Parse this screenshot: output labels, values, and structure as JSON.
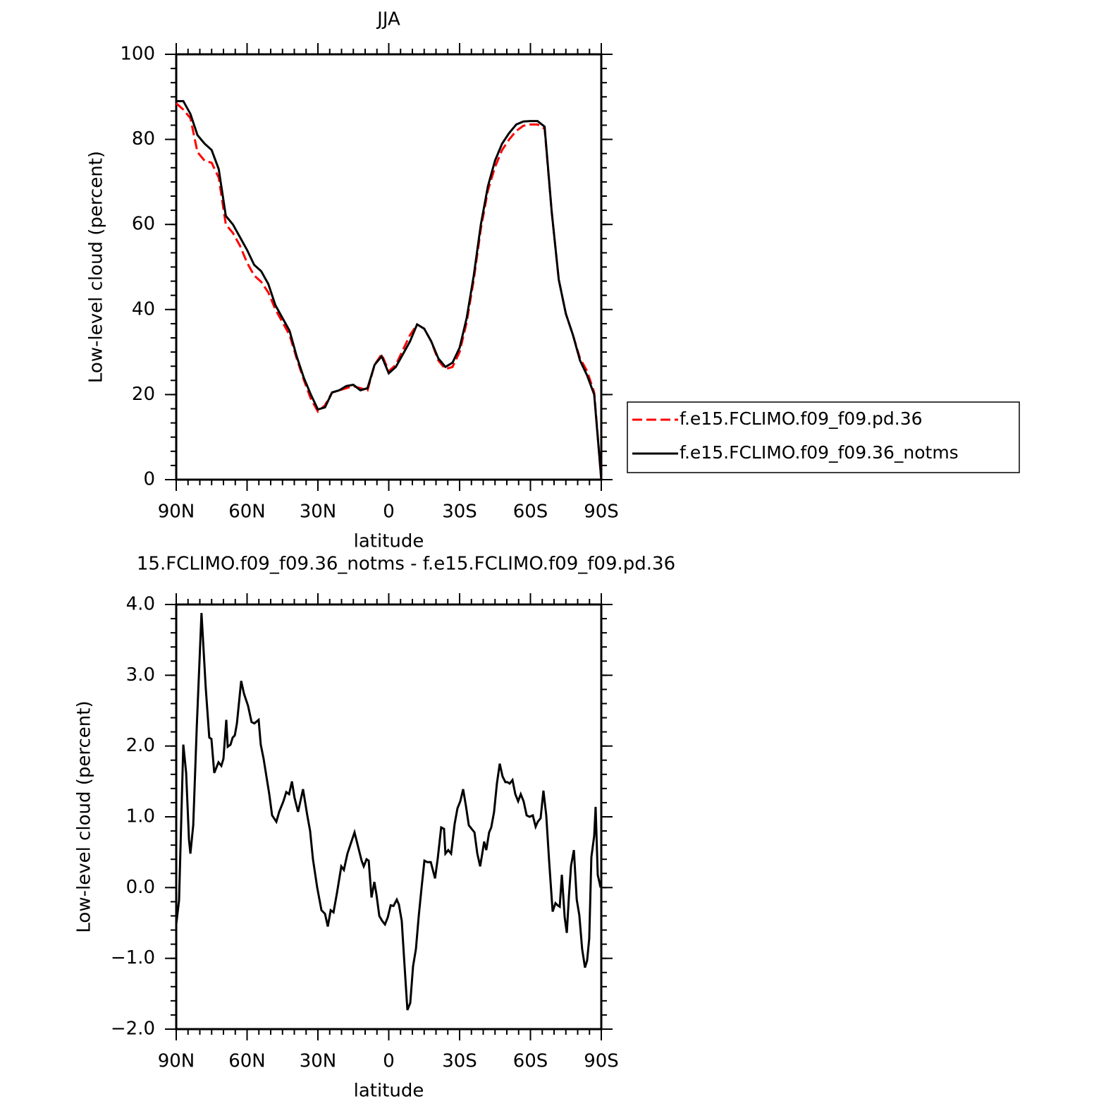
{
  "chart_data": [
    {
      "type": "line",
      "title": "JJA",
      "x_label": "latitude",
      "y_label": "Low-level cloud (percent)",
      "x": [
        90,
        87,
        84,
        81,
        78,
        75,
        72,
        69,
        66,
        63,
        60,
        57,
        54,
        51,
        48,
        45,
        42,
        39,
        36,
        33,
        30,
        27,
        24,
        21,
        18,
        15,
        12,
        9,
        6,
        3,
        0,
        -3,
        -6,
        -9,
        -12,
        -15,
        -18,
        -21,
        -24,
        -27,
        -30,
        -33,
        -36,
        -39,
        -42,
        -45,
        -48,
        -51,
        -54,
        -57,
        -60,
        -63,
        -66,
        -69,
        -72,
        -75,
        -78,
        -81,
        -84,
        -87,
        -90
      ],
      "series": [
        {
          "name": "f.e15.FCLIMO.f09_f09.pd.36",
          "color": "#ff0000",
          "line_style": "dashed",
          "values": [
            88.5,
            87,
            85,
            77,
            75,
            74.5,
            71,
            60,
            58,
            55,
            51,
            48,
            46.5,
            44,
            40,
            37,
            34,
            28.5,
            23.5,
            19,
            16,
            17.5,
            20.5,
            21,
            21.5,
            22,
            21.5,
            21,
            27,
            29.5,
            25.5,
            27,
            30.5,
            34,
            36.5,
            35.5,
            32.5,
            28,
            26,
            26.5,
            30,
            37,
            47,
            59,
            68,
            73.5,
            77.5,
            80,
            82,
            83.2,
            83.5,
            83.5,
            82.5,
            63,
            47,
            39,
            34,
            28.5,
            25.5,
            20.5,
            0
          ]
        },
        {
          "name": "f.e15.FCLIMO.f09_f09.36_notms",
          "color": "#000000",
          "line_style": "solid",
          "values": [
            89,
            89,
            86,
            81,
            79,
            77.5,
            73,
            62,
            60,
            57,
            54,
            50.5,
            49,
            46,
            41,
            38,
            35,
            29,
            24,
            20,
            16.5,
            17,
            20.5,
            21,
            22,
            22.3,
            21,
            21.5,
            27,
            29,
            25,
            26.5,
            29.5,
            32.5,
            36.5,
            35.5,
            32.5,
            28.5,
            26.5,
            27.5,
            31,
            38,
            48,
            60,
            69,
            75,
            79,
            81.5,
            83.5,
            84.2,
            84.3,
            84.3,
            83,
            63,
            47,
            39,
            34,
            28,
            24.5,
            20,
            0
          ]
        }
      ],
      "xlim": [
        90,
        -90
      ],
      "xticks": [
        {
          "value": 90,
          "label": "90N"
        },
        {
          "value": 60,
          "label": "60N"
        },
        {
          "value": 30,
          "label": "30N"
        },
        0,
        {
          "value": -30,
          "label": "30S"
        },
        {
          "value": -60,
          "label": "60S"
        },
        {
          "value": -90,
          "label": "90S"
        }
      ],
      "ylim": [
        0,
        100
      ],
      "yticks": [
        0,
        20,
        40,
        60,
        80,
        100
      ]
    },
    {
      "type": "line",
      "title": "15.FCLIMO.f09_f09.36_notms - f.e15.FCLIMO.f09_f09.pd.36",
      "x_label": "latitude",
      "y_label": "Low-level cloud (percent)",
      "x": [
        90,
        88.8,
        87,
        85.8,
        84.6,
        84,
        82.8,
        81.3,
        79.3,
        77.5,
        76,
        75.1,
        73.9,
        72.1,
        70.9,
        70,
        68.8,
        68.2,
        67,
        66.1,
        65.2,
        64.3,
        62.5,
        61.3,
        59.6,
        58.1,
        56.9,
        55.1,
        54.2,
        53,
        51.8,
        50.6,
        49.4,
        47.6,
        46.4,
        44.6,
        43.4,
        42.2,
        41,
        39.9,
        38.4,
        36.3,
        34.5,
        33.3,
        32.1,
        30.3,
        28.5,
        27,
        25.8,
        24.6,
        23.4,
        21.9,
        20.1,
        19,
        17.5,
        16,
        14.5,
        13,
        11.5,
        10.6,
        9.4,
        8.5,
        7.3,
        6.1,
        5.2,
        4,
        2.8,
        1.6,
        0.4,
        -0.8,
        -2,
        -3.4,
        -4.3,
        -5.5,
        -6.7,
        -7.9,
        -9.1,
        -10.3,
        -11.5,
        -12.7,
        -13.9,
        -15.1,
        -16.3,
        -17.8,
        -19.6,
        -20.7,
        -22.2,
        -23.4,
        -24,
        -25.2,
        -26.4,
        -27.9,
        -29.1,
        -30.3,
        -31.5,
        -32.7,
        -33.9,
        -35.1,
        -36.3,
        -37.5,
        -38.7,
        -39.6,
        -40.4,
        -41.3,
        -42.5,
        -43.4,
        -44.6,
        -45.8,
        -47,
        -48.2,
        -49.4,
        -50.3,
        -51.2,
        -52.4,
        -53.6,
        -54.8,
        -55.9,
        -57.1,
        -58.4,
        -59.6,
        -61,
        -62.2,
        -63.1,
        -64.3,
        -65.5,
        -66.7,
        -67.9,
        -69.4,
        -70.6,
        -71.5,
        -72.4,
        -73.3,
        -74.5,
        -75.4,
        -76.3,
        -77.2,
        -78.4,
        -79.6,
        -80.7,
        -81.9,
        -83.1,
        -84,
        -84.9,
        -85.8,
        -87,
        -87.6,
        -88.5,
        -89.7
      ],
      "values": [
        -0.52,
        -0.18,
        2.02,
        1.62,
        0.68,
        0.48,
        0.88,
        2.27,
        3.88,
        2.82,
        2.12,
        2.1,
        1.62,
        1.77,
        1.72,
        1.82,
        2.37,
        1.99,
        2.02,
        2.12,
        2.15,
        2.32,
        2.92,
        2.74,
        2.57,
        2.34,
        2.32,
        2.37,
        2.02,
        1.82,
        1.57,
        1.32,
        1.02,
        0.93,
        1.07,
        1.22,
        1.35,
        1.32,
        1.5,
        1.27,
        1.07,
        1.39,
        1.02,
        0.8,
        0.4,
        0,
        -0.32,
        -0.37,
        -0.55,
        -0.32,
        -0.35,
        -0.07,
        0.3,
        0.25,
        0.48,
        0.63,
        0.78,
        0.58,
        0.38,
        0.3,
        0.4,
        0.38,
        -0.14,
        0.08,
        -0.1,
        -0.4,
        -0.47,
        -0.52,
        -0.42,
        -0.25,
        -0.26,
        -0.17,
        -0.24,
        -0.47,
        -1.11,
        -1.73,
        -1.63,
        -1.11,
        -0.87,
        -0.4,
        0,
        0.38,
        0.36,
        0.36,
        0.13,
        0.4,
        0.85,
        0.83,
        0.48,
        0.53,
        0.48,
        0.9,
        1.12,
        1.22,
        1.39,
        1.15,
        0.88,
        0.83,
        0.78,
        0.48,
        0.3,
        0.48,
        0.65,
        0.53,
        0.78,
        0.85,
        1.07,
        1.47,
        1.75,
        1.57,
        1.49,
        1.49,
        1.47,
        1.52,
        1.32,
        1.22,
        1.32,
        1.22,
        1.02,
        1,
        1.02,
        0.86,
        0.93,
        0.98,
        1.37,
        1.02,
        0.38,
        -0.34,
        -0.22,
        -0.25,
        -0.27,
        0.18,
        -0.42,
        -0.64,
        -0.12,
        0.31,
        0.53,
        -0.17,
        -0.39,
        -0.87,
        -1.13,
        -1.03,
        -0.72,
        0.43,
        0.73,
        1.14,
        0.18,
        0
      ],
      "color": "#000000",
      "xlim": [
        90,
        -90
      ],
      "xticks": [
        {
          "value": 90,
          "label": "90N"
        },
        {
          "value": 60,
          "label": "60N"
        },
        {
          "value": 30,
          "label": "30N"
        },
        0,
        {
          "value": -30,
          "label": "30S"
        },
        {
          "value": -60,
          "label": "60S"
        },
        {
          "value": -90,
          "label": "90S"
        }
      ],
      "ylim": [
        -2,
        4
      ],
      "yticks": [
        {
          "value": -2,
          "label": "−2.0"
        },
        {
          "value": -1,
          "label": "−1.0"
        },
        {
          "value": 0,
          "label": "0.0"
        },
        {
          "value": 1,
          "label": "1.0"
        },
        {
          "value": 2,
          "label": "2.0"
        },
        {
          "value": 3,
          "label": "3.0"
        },
        {
          "value": 4,
          "label": "4.0"
        }
      ]
    }
  ]
}
